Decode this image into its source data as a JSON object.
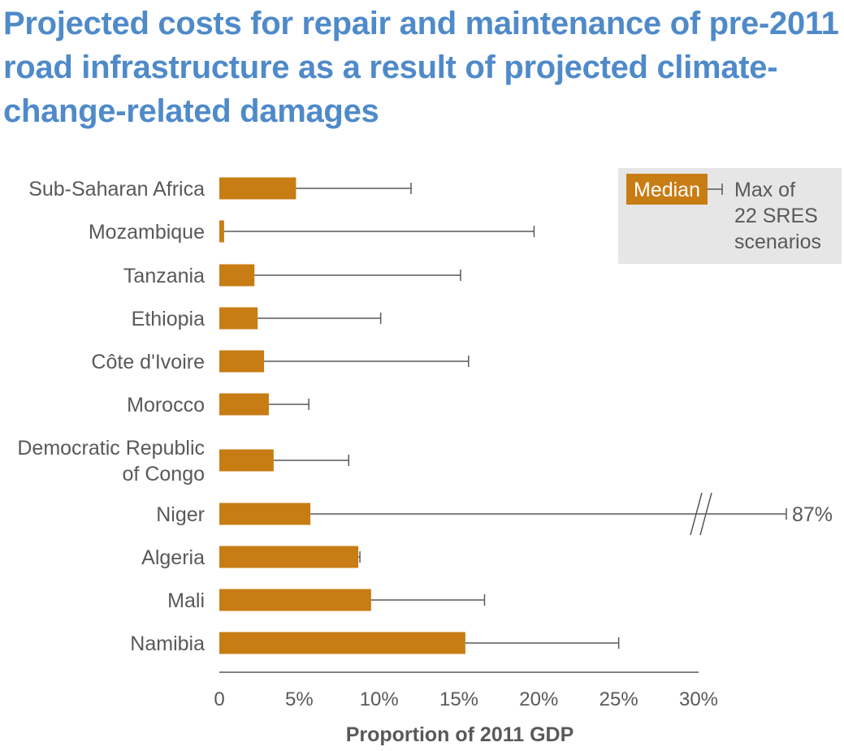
{
  "chart_data": {
    "type": "bar",
    "orientation": "horizontal",
    "title": "Projected costs for repair and maintenance of pre-2011 road infrastructure as a result of projected climate-change-related damages",
    "xlabel": "Proportion of 2011 GDP",
    "xlim": [
      0,
      30
    ],
    "x_ticks": [
      "0",
      "5%",
      "10%",
      "15%",
      "20%",
      "25%",
      "30%"
    ],
    "categories": [
      [
        "Sub-Saharan Africa"
      ],
      [
        "Mozambique"
      ],
      [
        "Tanzania"
      ],
      [
        "Ethiopia"
      ],
      [
        "Côte d'Ivoire"
      ],
      [
        "Morocco"
      ],
      [
        "Democratic Republic",
        "of Congo"
      ],
      [
        "Niger"
      ],
      [
        "Algeria"
      ],
      [
        "Mali"
      ],
      [
        "Namibia"
      ]
    ],
    "series": [
      {
        "name": "Median",
        "values": [
          4.8,
          0.3,
          2.2,
          2.4,
          2.8,
          3.1,
          3.4,
          5.7,
          8.7,
          9.5,
          15.4
        ]
      },
      {
        "name": "Max of 22 SRES scenarios",
        "values": [
          12.0,
          19.7,
          15.1,
          10.1,
          15.6,
          5.6,
          8.1,
          87,
          8.8,
          16.6,
          25.0
        ]
      }
    ],
    "axis_break": {
      "category": "Niger",
      "label": "87%"
    },
    "legend": {
      "position": "top-right",
      "median_label": "Median",
      "max_label_lines": [
        "Max of",
        "22 SRES",
        "scenarios"
      ]
    },
    "colors": {
      "bar": "#c87c14",
      "error": "#595959",
      "title": "#4f8ac9",
      "legend_bg": "#e6e6e6"
    },
    "grid": false
  }
}
